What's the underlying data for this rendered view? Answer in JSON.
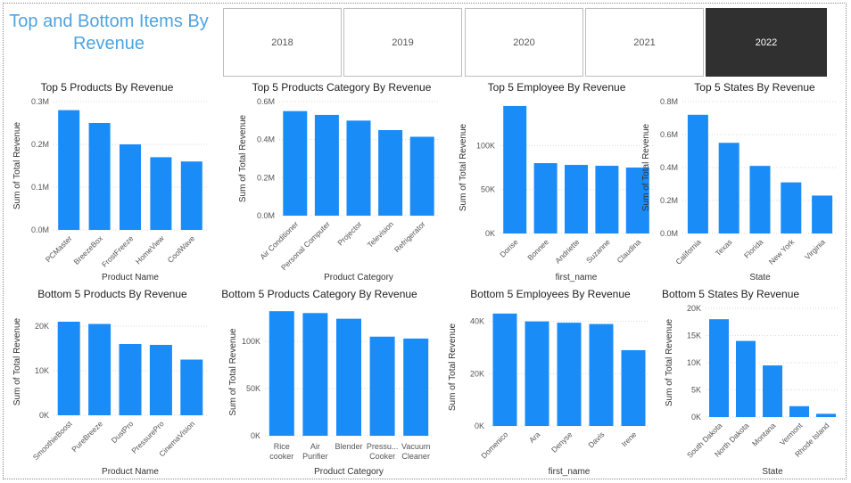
{
  "title": "Top and Bottom Items By Revenue",
  "slicer": {
    "items": [
      "2018",
      "2019",
      "2020",
      "2021",
      "2022"
    ],
    "selected": "2022"
  },
  "colors": {
    "bar": "#1a8cf8",
    "selected_bg": "#303030",
    "title": "#4fa3e0"
  },
  "chart_data": [
    {
      "type": "bar",
      "title": "Top 5 Products By Revenue",
      "xlabel": "Product Name",
      "ylabel": "Sum of Total Revenue",
      "categories": [
        "PCMaster",
        "BreezeBox",
        "FrostFreeze",
        "HomeView",
        "CoolWave"
      ],
      "values": [
        280000,
        250000,
        200000,
        170000,
        160000
      ],
      "yticks": [
        0,
        100000,
        200000,
        300000
      ],
      "ytick_labels": [
        "0.0M",
        "0.1M",
        "0.2M",
        "0.3M"
      ],
      "ylim": [
        0,
        300000
      ],
      "rotate": true
    },
    {
      "type": "bar",
      "title": "Top 5 Products Category By Revenue",
      "xlabel": "Product Category",
      "ylabel": "Sum of Total Revenue",
      "categories": [
        "Air Conditioner",
        "Personal Computer",
        "Projector",
        "Television",
        "Refrigerator"
      ],
      "values": [
        550000,
        530000,
        500000,
        450000,
        415000
      ],
      "yticks": [
        0,
        200000,
        400000,
        600000
      ],
      "ytick_labels": [
        "0.0M",
        "0.2M",
        "0.4M",
        "0.6M"
      ],
      "ylim": [
        0,
        600000
      ],
      "rotate": true
    },
    {
      "type": "bar",
      "title": "Top 5 Employee By Revenue",
      "xlabel": "first_name",
      "ylabel": "Sum of Total Revenue",
      "categories": [
        "Dorise",
        "Bonnee",
        "Andriette",
        "Suzanne",
        "Claudina"
      ],
      "values": [
        145000,
        80000,
        78000,
        77000,
        75000
      ],
      "yticks": [
        0,
        50000,
        100000
      ],
      "ytick_labels": [
        "0K",
        "50K",
        "100K"
      ],
      "ylim": [
        0,
        150000
      ],
      "rotate": true
    },
    {
      "type": "bar",
      "title": "Top 5 States By Revenue",
      "xlabel": "State",
      "ylabel": "Sum of Total Revenue",
      "categories": [
        "California",
        "Texas",
        "Florida",
        "New York",
        "Virginia"
      ],
      "values": [
        720000,
        550000,
        410000,
        310000,
        230000
      ],
      "yticks": [
        0,
        200000,
        400000,
        600000,
        800000
      ],
      "ytick_labels": [
        "0.0M",
        "0.2M",
        "0.4M",
        "0.6M",
        "0.8M"
      ],
      "ylim": [
        0,
        800000
      ],
      "rotate": true
    },
    {
      "type": "bar",
      "title": "Bottom 5 Products By Revenue",
      "xlabel": "Product Name",
      "ylabel": "Sum of Total Revenue",
      "categories": [
        "SmoothieBoost",
        "PureBreeze",
        "DustPro",
        "PressurePro",
        "CinemaVision"
      ],
      "values": [
        21000,
        20500,
        16000,
        15800,
        12500
      ],
      "yticks": [
        0,
        10000,
        20000
      ],
      "ytick_labels": [
        "0K",
        "10K",
        "20K"
      ],
      "ylim": [
        0,
        24000
      ],
      "rotate": true
    },
    {
      "type": "bar",
      "title": "Bottom 5 Products Category By Revenue",
      "xlabel": "Product Category",
      "ylabel": "Sum of Total Revenue",
      "categories": [
        [
          "Rice",
          "cooker"
        ],
        [
          "Air",
          "Purifier"
        ],
        [
          "Blender"
        ],
        [
          "Pressu...",
          "Cooker"
        ],
        [
          "Vacuum",
          "Cleaner"
        ]
      ],
      "values": [
        132000,
        130000,
        124000,
        105000,
        103000
      ],
      "yticks": [
        0,
        50000,
        100000
      ],
      "ytick_labels": [
        "0K",
        "50K",
        "100K"
      ],
      "ylim": [
        0,
        135000
      ],
      "rotate": false
    },
    {
      "type": "bar",
      "title": "Bottom 5 Employees By Revenue",
      "xlabel": "first_name",
      "ylabel": "Sum of Total Revenue",
      "categories": [
        "Domenico",
        "Ara",
        "Denyse",
        "Davis",
        "Irene"
      ],
      "values": [
        43000,
        40000,
        39500,
        39000,
        29000
      ],
      "yticks": [
        0,
        20000,
        40000
      ],
      "ytick_labels": [
        "0K",
        "20K",
        "40K"
      ],
      "ylim": [
        0,
        45000
      ],
      "rotate": true
    },
    {
      "type": "bar",
      "title": "Bottom 5 States By Revenue",
      "xlabel": "State",
      "ylabel": "Sum of Total Revenue",
      "categories": [
        "South Dakota",
        "North Dakota",
        "Montana",
        "Vermont",
        "Rhode Island"
      ],
      "values": [
        18000,
        14000,
        9500,
        2000,
        600
      ],
      "yticks": [
        0,
        5000,
        10000,
        15000,
        20000
      ],
      "ytick_labels": [
        "0K",
        "5K",
        "10K",
        "15K",
        "20K"
      ],
      "ylim": [
        0,
        20000
      ],
      "rotate": true
    }
  ]
}
